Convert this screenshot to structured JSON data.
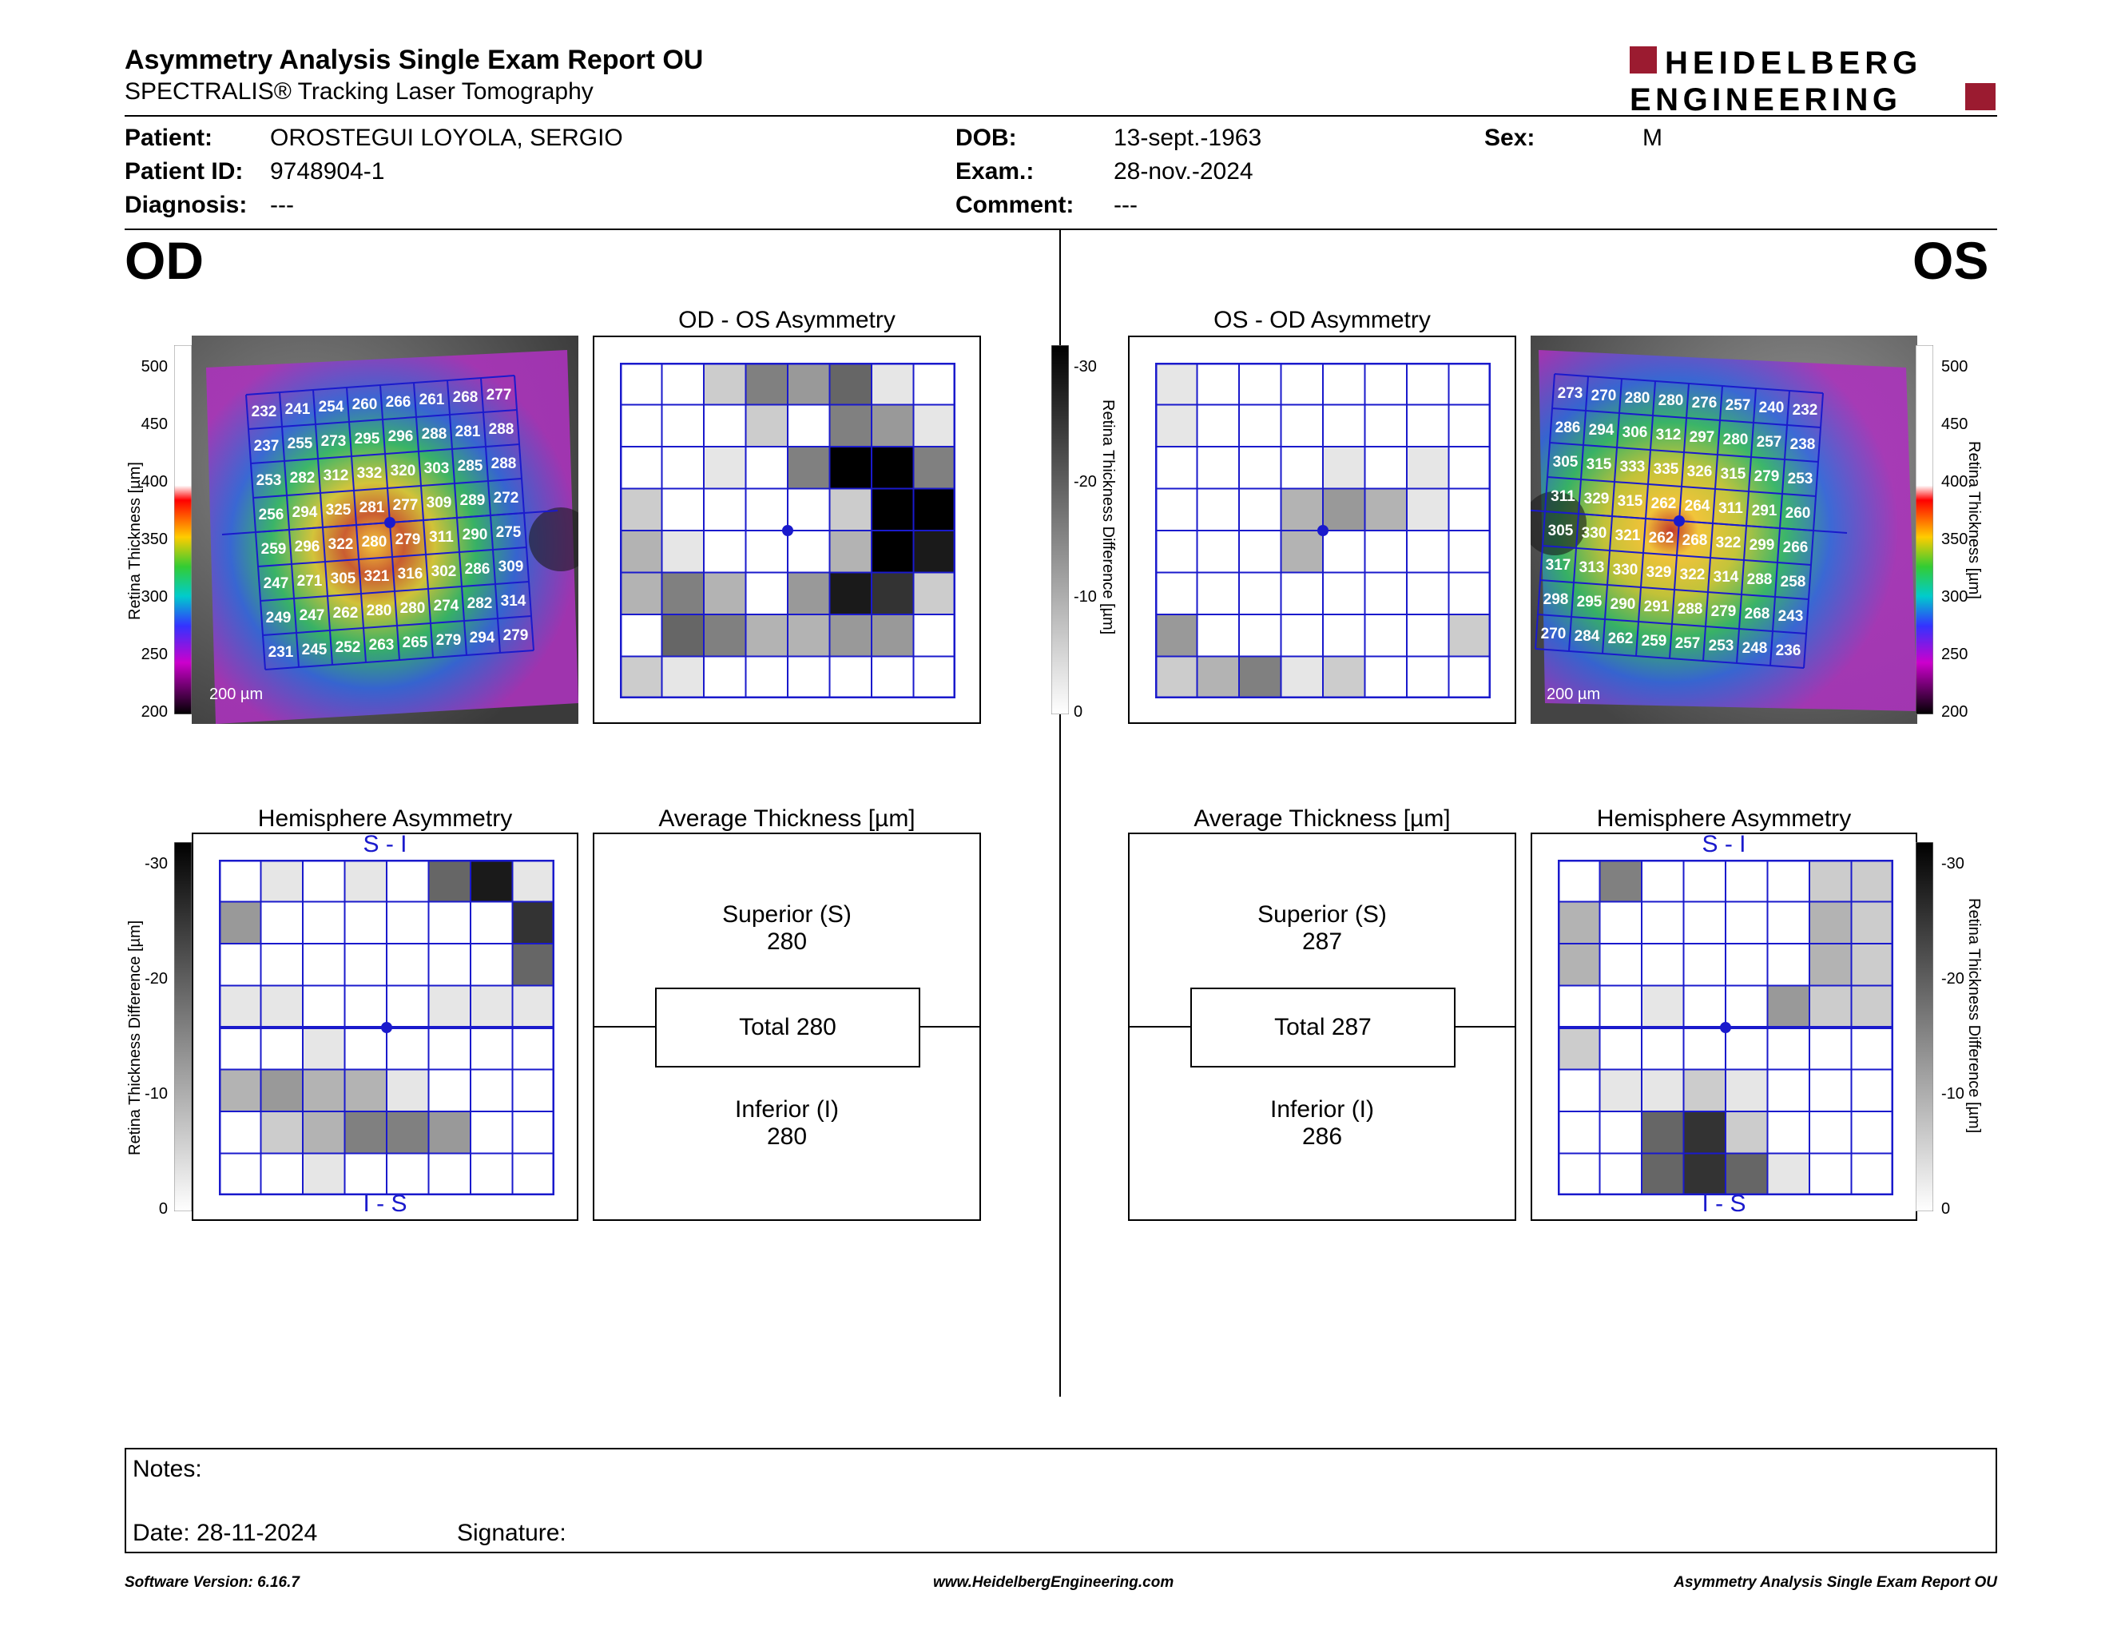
{
  "header": {
    "title": "Asymmetry Analysis Single Exam Report OU",
    "subtitle": "SPECTRALIS® Tracking Laser Tomography",
    "logo_line1": "HEIDELBERG",
    "logo_line2": "ENGINEERING",
    "logo_color": "#9b1b30"
  },
  "patient": {
    "patient_label": "Patient:",
    "patient_value": "OROSTEGUI LOYOLA, SERGIO",
    "id_label": "Patient ID:",
    "id_value": "9748904-1",
    "diagnosis_label": "Diagnosis:",
    "diagnosis_value": "---",
    "dob_label": "DOB:",
    "dob_value": "13-sept.-1963",
    "exam_label": "Exam.:",
    "exam_value": "28-nov.-2024",
    "comment_label": "Comment:",
    "comment_value": "---",
    "sex_label": "Sex:",
    "sex_value": "M"
  },
  "od": {
    "label": "OD",
    "asym_title": "OD - OS Asymmetry",
    "hemi_title": "Hemisphere Asymmetry",
    "avg_title": "Average Thickness [µm]",
    "superior_label": "Superior (S)",
    "superior_value": "280",
    "total_label": "Total 280",
    "inferior_label": "Inferior (I)",
    "inferior_value": "280",
    "hemi_top": "S - I",
    "hemi_bottom": "I - S",
    "scale_bar": "200 µm",
    "thickness": [
      [
        232,
        241,
        254,
        260,
        266,
        261,
        268,
        277
      ],
      [
        237,
        255,
        273,
        295,
        296,
        288,
        281,
        288
      ],
      [
        253,
        282,
        312,
        332,
        320,
        303,
        285,
        288
      ],
      [
        256,
        294,
        325,
        281,
        277,
        309,
        289,
        272
      ],
      [
        259,
        296,
        322,
        280,
        279,
        311,
        290,
        275
      ],
      [
        247,
        271,
        305,
        321,
        316,
        302,
        286,
        309
      ],
      [
        249,
        247,
        262,
        280,
        280,
        274,
        282,
        314
      ],
      [
        231,
        245,
        252,
        263,
        265,
        279,
        294,
        279
      ]
    ],
    "asym_grid": [
      [
        0,
        0,
        2,
        5,
        4,
        6,
        1,
        0
      ],
      [
        0,
        0,
        0,
        2,
        0,
        5,
        4,
        1
      ],
      [
        0,
        0,
        1,
        0,
        5,
        10,
        10,
        5
      ],
      [
        2,
        0,
        0,
        0,
        0,
        2,
        10,
        10
      ],
      [
        3,
        1,
        0,
        0,
        0,
        3,
        10,
        9
      ],
      [
        3,
        5,
        3,
        0,
        4,
        9,
        8,
        2
      ],
      [
        0,
        6,
        5,
        3,
        3,
        4,
        4,
        0
      ],
      [
        2,
        1,
        0,
        0,
        0,
        0,
        0,
        0
      ]
    ],
    "hemi_grid": [
      [
        0,
        1,
        0,
        1,
        0,
        6,
        9,
        1
      ],
      [
        4,
        0,
        0,
        0,
        0,
        0,
        0,
        8
      ],
      [
        0,
        0,
        0,
        0,
        0,
        0,
        0,
        6
      ],
      [
        1,
        1,
        0,
        0,
        0,
        1,
        1,
        1
      ],
      [
        0,
        0,
        1,
        0,
        0,
        0,
        0,
        0
      ],
      [
        3,
        4,
        3,
        3,
        1,
        0,
        0,
        0
      ],
      [
        0,
        2,
        3,
        5,
        5,
        4,
        0,
        0
      ],
      [
        0,
        0,
        1,
        0,
        0,
        0,
        0,
        0
      ]
    ]
  },
  "os": {
    "label": "OS",
    "asym_title": "OS - OD Asymmetry",
    "hemi_title": "Hemisphere Asymmetry",
    "avg_title": "Average Thickness [µm]",
    "superior_label": "Superior (S)",
    "superior_value": "287",
    "total_label": "Total 287",
    "inferior_label": "Inferior (I)",
    "inferior_value": "286",
    "hemi_top": "S - I",
    "hemi_bottom": "I - S",
    "scale_bar": "200 µm",
    "thickness": [
      [
        273,
        270,
        280,
        280,
        276,
        257,
        240,
        232
      ],
      [
        286,
        294,
        306,
        312,
        297,
        280,
        257,
        238
      ],
      [
        305,
        315,
        333,
        335,
        326,
        315,
        279,
        253
      ],
      [
        311,
        329,
        315,
        262,
        264,
        311,
        291,
        260
      ],
      [
        305,
        330,
        321,
        262,
        268,
        322,
        299,
        266
      ],
      [
        317,
        313,
        330,
        329,
        322,
        314,
        288,
        258
      ],
      [
        298,
        295,
        290,
        291,
        288,
        279,
        268,
        243
      ],
      [
        270,
        284,
        262,
        259,
        257,
        253,
        248,
        236
      ]
    ],
    "asym_grid": [
      [
        1,
        0,
        0,
        0,
        0,
        0,
        0,
        0
      ],
      [
        1,
        0,
        0,
        0,
        0,
        0,
        0,
        0
      ],
      [
        0,
        0,
        0,
        0,
        1,
        0,
        1,
        0
      ],
      [
        0,
        0,
        0,
        3,
        4,
        3,
        1,
        0
      ],
      [
        0,
        0,
        0,
        3,
        0,
        0,
        0,
        0
      ],
      [
        0,
        0,
        0,
        0,
        0,
        0,
        0,
        0
      ],
      [
        4,
        0,
        0,
        0,
        0,
        0,
        0,
        2
      ],
      [
        2,
        3,
        5,
        1,
        2,
        0,
        0,
        0
      ]
    ],
    "hemi_grid": [
      [
        0,
        5,
        0,
        0,
        0,
        0,
        2,
        2
      ],
      [
        3,
        0,
        0,
        0,
        0,
        0,
        3,
        2
      ],
      [
        3,
        0,
        0,
        0,
        0,
        0,
        3,
        2
      ],
      [
        0,
        0,
        1,
        0,
        0,
        4,
        2,
        2
      ],
      [
        2,
        0,
        0,
        0,
        0,
        0,
        0,
        0
      ],
      [
        0,
        1,
        1,
        2,
        1,
        0,
        0,
        0
      ],
      [
        0,
        0,
        6,
        8,
        2,
        0,
        0,
        0
      ],
      [
        0,
        0,
        6,
        8,
        6,
        1,
        0,
        0
      ]
    ]
  },
  "scales": {
    "thickness_ticks": [
      "500",
      "450",
      "400",
      "350",
      "300",
      "250",
      "200"
    ],
    "thickness_label": "Retina Thickness [µm]",
    "diff_ticks": [
      "-30",
      "-20",
      "-10",
      "0"
    ],
    "diff_label": "Retina Thickness Difference [µm]"
  },
  "notes": {
    "notes_label": "Notes:",
    "date_label": "Date: 28-11-2024",
    "signature_label": "Signature:"
  },
  "footer": {
    "left": "Software Version: 6.16.7",
    "center": "www.HeidelbergEngineering.com",
    "right": "Asymmetry Analysis Single Exam Report OU"
  }
}
